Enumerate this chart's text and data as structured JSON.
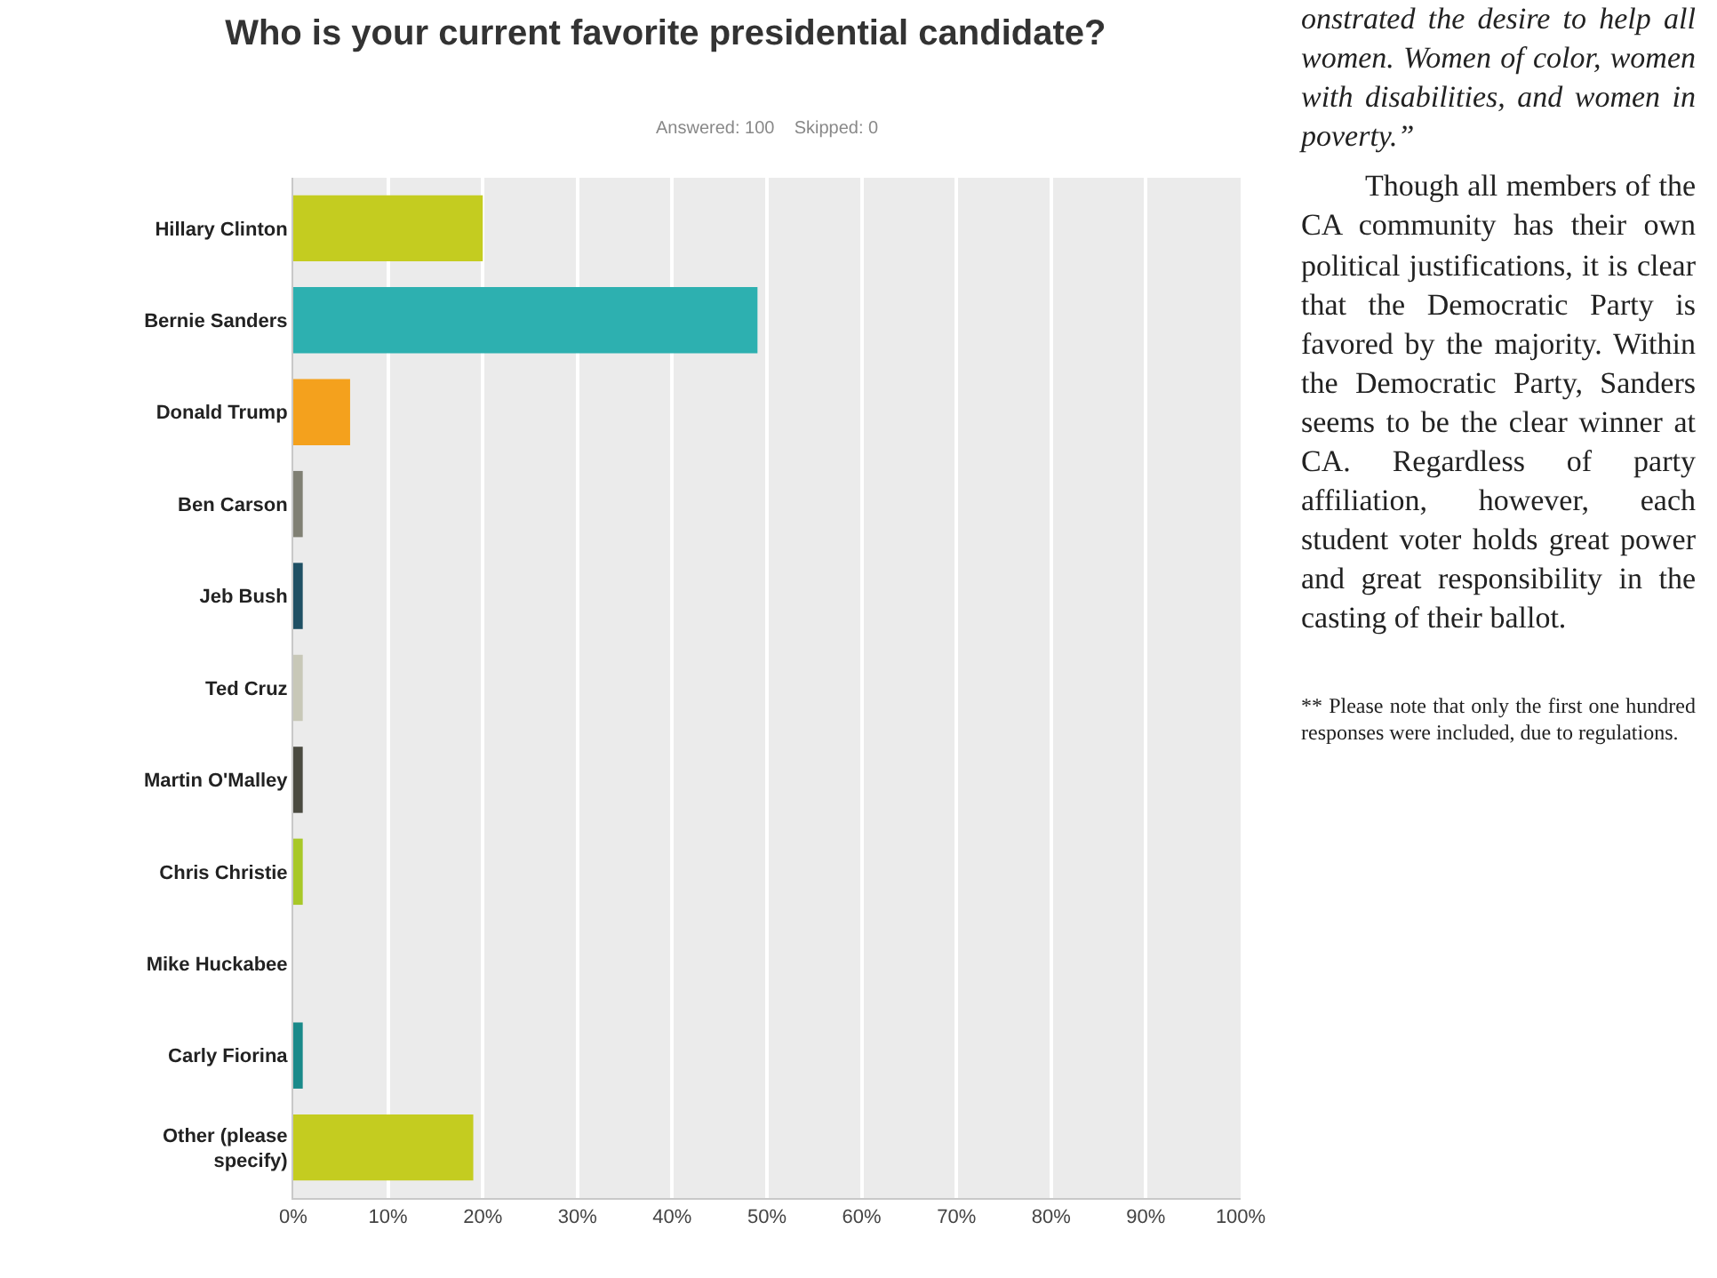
{
  "chart_data": {
    "type": "bar",
    "orientation": "horizontal",
    "title": "Who is your current favorite presidential candidate?",
    "subtitle": "Answered: 100    Skipped: 0",
    "categories": [
      "Hillary Clinton",
      "Bernie Sanders",
      "Donald Trump",
      "Ben Carson",
      "Jeb Bush",
      "Ted Cruz",
      "Martin O'Malley",
      "Chris Christie",
      "Mike Huckabee",
      "Carly Fiorina",
      "Other (please specify)"
    ],
    "values": [
      20,
      49,
      6,
      1,
      1,
      1,
      1,
      1,
      0,
      1,
      19
    ],
    "colors": [
      "#c4cc20",
      "#2db0b0",
      "#f4a11d",
      "#808074",
      "#1f5064",
      "#c8c8b8",
      "#4a4a40",
      "#a8c828",
      "#888888",
      "#1a8a8a",
      "#c4cc20"
    ],
    "xlim": [
      0,
      100
    ],
    "xticks": [
      {
        "value": 0,
        "label": "0%"
      },
      {
        "value": 10,
        "label": "10%"
      },
      {
        "value": 20,
        "label": "20%"
      },
      {
        "value": 30,
        "label": "30%"
      },
      {
        "value": 40,
        "label": "40%"
      },
      {
        "value": 50,
        "label": "50%"
      },
      {
        "value": 60,
        "label": "60%"
      },
      {
        "value": 70,
        "label": "70%"
      },
      {
        "value": 80,
        "label": "80%"
      },
      {
        "value": 90,
        "label": "90%"
      },
      {
        "value": 100,
        "label": "100%"
      }
    ],
    "grid": "x",
    "annotations": [
      "onstrated the desire to help all women. Women of color, women with disabilities, and women in poverty.”",
      "Though all members of the CA community has their own political justifications, it is clear that the Democratic Party is favored by the majority. Within the Democratic Party, Sanders seems to be the clear winner at CA. Regardless of party affiliation, however, each student voter holds great power and great responsibility in the casting of their ballot.",
      "** Please note that only the first one hundred responses were included, due to regulations."
    ]
  }
}
